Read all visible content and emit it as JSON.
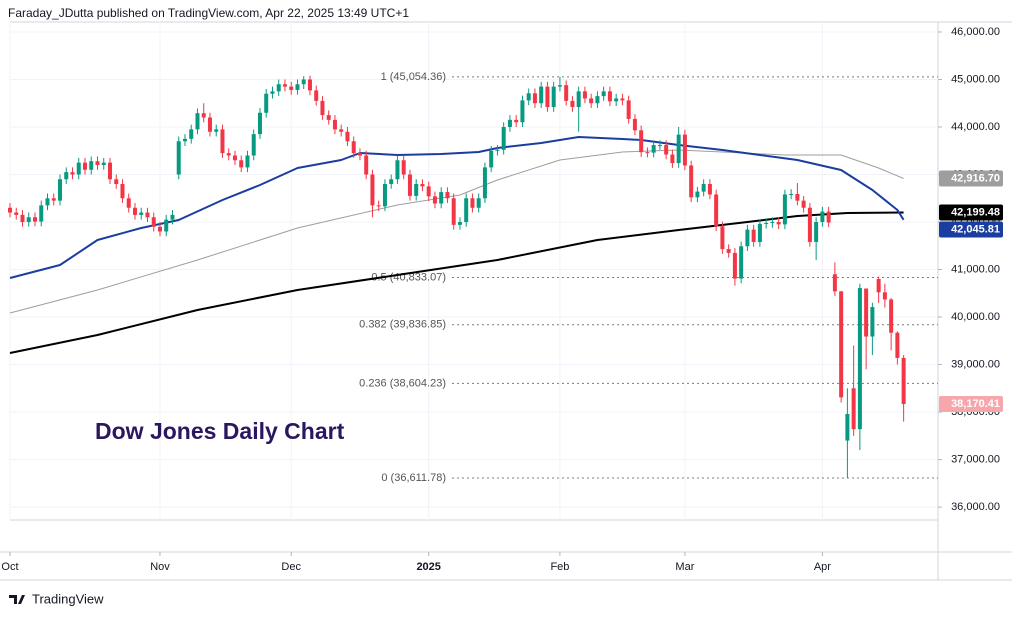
{
  "chart_data": {
    "type": "candlestick",
    "source": "Faraday_JDutta published on TradingView.com, Apr 22, 2025 13:49 UTC+1",
    "title": "Dow Jones Daily Chart",
    "brand": "TradingView",
    "categories": [
      "Oct",
      null,
      null,
      null,
      null,
      null,
      null,
      null,
      null,
      null,
      null,
      null,
      null,
      null,
      null,
      null,
      null,
      null,
      null,
      null,
      null,
      null,
      null,
      null,
      "Nov",
      null,
      null,
      null,
      null,
      null,
      null,
      null,
      null,
      null,
      null,
      null,
      null,
      null,
      null,
      null,
      null,
      null,
      null,
      null,
      null,
      "Dec",
      null,
      null,
      null,
      null,
      null,
      null,
      null,
      null,
      null,
      null,
      null,
      null,
      null,
      null,
      null,
      null,
      null,
      null,
      null,
      null,
      null,
      "2025",
      null,
      null,
      null,
      null,
      null,
      null,
      null,
      null,
      null,
      null,
      null,
      null,
      null,
      null,
      null,
      null,
      null,
      null,
      null,
      null,
      "Feb",
      null,
      null,
      null,
      null,
      null,
      null,
      null,
      null,
      null,
      null,
      null,
      null,
      null,
      null,
      null,
      null,
      null,
      null,
      null,
      "Mar",
      null,
      null,
      null,
      null,
      null,
      null,
      null,
      null,
      null,
      null,
      null,
      null,
      null,
      null,
      null,
      null,
      null,
      null,
      null,
      null,
      null,
      "Apr",
      null,
      null,
      null,
      null,
      null,
      null,
      null,
      null,
      null,
      null,
      null,
      null,
      null
    ],
    "open": [
      42300,
      42200,
      42150,
      42000,
      42100,
      42010,
      42350,
      42500,
      42450,
      42900,
      43050,
      43000,
      43250,
      43100,
      43280,
      43200,
      43250,
      42900,
      42800,
      42500,
      42300,
      42150,
      42200,
      42100,
      41900,
      41800,
      42050,
      43000,
      43700,
      43750,
      43950,
      44290,
      44200,
      43900,
      43950,
      43450,
      43400,
      43300,
      43150,
      43400,
      43850,
      44300,
      44700,
      44750,
      44900,
      44850,
      44780,
      44900,
      45000,
      44770,
      44550,
      44250,
      44150,
      43950,
      43900,
      43700,
      43450,
      43400,
      43000,
      42350,
      42330,
      42800,
      42900,
      43300,
      43000,
      42550,
      42800,
      42750,
      42540,
      42390,
      42630,
      42500,
      41940,
      42000,
      42500,
      42300,
      42500,
      43150,
      43500,
      43520,
      44000,
      44150,
      44100,
      44560,
      44710,
      44500,
      44850,
      44420,
      44850,
      44880,
      44550,
      44420,
      44750,
      44600,
      44500,
      44650,
      44750,
      44540,
      44600,
      44560,
      44170,
      43930,
      43470,
      43460,
      43620,
      43620,
      43420,
      43240,
      43840,
      43190,
      42520,
      42640,
      42800,
      42580,
      41910,
      41430,
      41350,
      40810,
      41490,
      41840,
      41580,
      41960,
      41980,
      42000,
      41950,
      42580,
      42590,
      42450,
      42300,
      41580,
      42000,
      42220,
      40900,
      40540,
      37400,
      38500,
      37640,
      40600,
      39590,
      40800,
      40520,
      40370,
      39670,
      39140
    ],
    "high": [
      42400,
      42300,
      42250,
      42200,
      42200,
      42450,
      42600,
      42600,
      43000,
      43150,
      43150,
      43350,
      43350,
      43380,
      43380,
      43350,
      43350,
      43000,
      42900,
      42600,
      42400,
      42300,
      42300,
      42200,
      42000,
      42150,
      42250,
      43800,
      43850,
      44050,
      44390,
      44500,
      44300,
      44050,
      44050,
      43550,
      43500,
      43400,
      43500,
      43950,
      44400,
      44800,
      44850,
      45000,
      45000,
      44950,
      45000,
      45070,
      45080,
      44870,
      44650,
      44350,
      44250,
      44050,
      44000,
      43800,
      43550,
      43500,
      43100,
      42450,
      42900,
      43000,
      43400,
      43400,
      43100,
      42900,
      42900,
      42850,
      42640,
      42730,
      42730,
      42600,
      42100,
      42600,
      42600,
      42600,
      43250,
      43600,
      43620,
      44100,
      44250,
      44250,
      44660,
      44810,
      44810,
      44950,
      44950,
      44950,
      45054.36,
      44980,
      44650,
      44850,
      44850,
      44700,
      44750,
      44850,
      44850,
      44700,
      44700,
      44660,
      44270,
      44030,
      43570,
      43720,
      43720,
      43720,
      43520,
      44000,
      43940,
      43290,
      42740,
      42900,
      42900,
      42680,
      42010,
      41530,
      41450,
      41590,
      41940,
      41940,
      42060,
      42080,
      42100,
      42100,
      42680,
      42690,
      42820,
      42550,
      42400,
      42100,
      42320,
      42320,
      41150,
      40550,
      38500,
      39400,
      40700,
      40600,
      40300,
      40850,
      40700,
      40400,
      39700,
      39200
    ],
    "low": [
      42100,
      42050,
      41900,
      41900,
      41910,
      41910,
      42250,
      42350,
      42350,
      42800,
      42900,
      42900,
      43000,
      43000,
      43100,
      43100,
      42800,
      42700,
      42400,
      42200,
      42050,
      42050,
      42000,
      41800,
      41700,
      41700,
      41950,
      42900,
      43600,
      43650,
      43850,
      44100,
      43800,
      43800,
      43350,
      43300,
      43200,
      43050,
      43050,
      43300,
      43750,
      44200,
      44600,
      44650,
      44750,
      44680,
      44680,
      44800,
      44670,
      44450,
      44150,
      44050,
      43850,
      43800,
      43600,
      43350,
      43300,
      42900,
      42100,
      42230,
      42230,
      42700,
      42800,
      42900,
      42450,
      42450,
      42650,
      42440,
      42290,
      42290,
      42400,
      41840,
      41840,
      41900,
      42200,
      42200,
      42400,
      43050,
      43400,
      43420,
      43900,
      44000,
      44000,
      44460,
      44400,
      44400,
      44320,
      44320,
      44750,
      44450,
      44320,
      43900,
      44500,
      44400,
      44400,
      44550,
      44440,
      44440,
      44460,
      44070,
      43830,
      43370,
      43360,
      43360,
      43520,
      43320,
      43140,
      43140,
      43090,
      42420,
      42420,
      42540,
      42480,
      41810,
      41330,
      41250,
      40660,
      40710,
      41390,
      41480,
      41480,
      41860,
      41880,
      41850,
      41850,
      42480,
      42350,
      42200,
      41480,
      41200,
      41900,
      41890,
      40440,
      38200,
      36611.78,
      37500,
      37200,
      38900,
      39200,
      40300,
      40200,
      39300,
      39000,
      37800
    ],
    "close": [
      42200,
      42150,
      42000,
      42100,
      42010,
      42350,
      42500,
      42450,
      42900,
      43050,
      43000,
      43250,
      43100,
      43280,
      43200,
      43250,
      42900,
      42800,
      42500,
      42300,
      42150,
      42200,
      42100,
      41900,
      41800,
      42050,
      42150,
      43700,
      43750,
      43950,
      44290,
      44200,
      43900,
      43950,
      43450,
      43400,
      43300,
      43150,
      43400,
      43850,
      44300,
      44700,
      44750,
      44900,
      44850,
      44780,
      44900,
      45000,
      44770,
      44550,
      44250,
      44150,
      43950,
      43900,
      43700,
      43450,
      43400,
      43000,
      42350,
      42330,
      42800,
      42900,
      43300,
      43000,
      42550,
      42800,
      42750,
      42540,
      42390,
      42630,
      42500,
      41940,
      42000,
      42500,
      42300,
      42500,
      43150,
      43500,
      43520,
      44000,
      44150,
      44100,
      44560,
      44710,
      44500,
      44850,
      44420,
      44850,
      44880,
      44550,
      44420,
      44750,
      44600,
      44500,
      44650,
      44750,
      44540,
      44600,
      44560,
      44170,
      43930,
      43470,
      43460,
      43620,
      43620,
      43420,
      43240,
      43840,
      43190,
      42520,
      42640,
      42800,
      42580,
      41910,
      41430,
      41350,
      40810,
      41490,
      41840,
      41580,
      41960,
      41980,
      42000,
      41950,
      42580,
      42590,
      42450,
      42300,
      41580,
      42000,
      42220,
      41990,
      40540,
      38310,
      37960,
      37640,
      40610,
      39590,
      40210,
      40520,
      40370,
      39670,
      39140,
      38170.41
    ],
    "last_label": "38,170.41",
    "up_color": "#089981",
    "down_color": "#f23645",
    "last_label_color": "#f7a6ac",
    "series": [
      {
        "color": "#9e9e9e",
        "last_label": "42,916.70",
        "x": [
          0,
          14,
          30,
          46,
          62,
          72,
          78,
          88,
          98,
          107,
          114,
          124,
          133,
          139,
          143
        ],
        "values": [
          40085,
          40569,
          41200,
          41874,
          42358,
          42569,
          42884,
          43305,
          43474,
          43516,
          43474,
          43411,
          43411,
          43137,
          42916.7
        ]
      },
      {
        "color": "#000000",
        "last_label": "42,199.48",
        "x": [
          0,
          14,
          30,
          46,
          62,
          78,
          94,
          107,
          118,
          126,
          134,
          143
        ],
        "values": [
          39243,
          39622,
          40148,
          40569,
          40885,
          41200,
          41622,
          41832,
          42000,
          42127,
          42190,
          42199.48
        ]
      },
      {
        "color": "#1a3ea0",
        "last_label": "42,045.81",
        "x": [
          0,
          8,
          14,
          21,
          27,
          34,
          40,
          46,
          53,
          56,
          62,
          69,
          75,
          78,
          85,
          91,
          98,
          101,
          107,
          114,
          120,
          126,
          133,
          138,
          142,
          143
        ],
        "values": [
          40822,
          41095,
          41622,
          41874,
          42043,
          42464,
          42779,
          43137,
          43305,
          43453,
          43411,
          43432,
          43474,
          43558,
          43663,
          43790,
          43748,
          43726,
          43621,
          43516,
          43411,
          43305,
          43095,
          42674,
          42253,
          42045.81
        ]
      }
    ],
    "fib_levels": [
      {
        "value": 45054.36,
        "label": "1 (45,054.36)"
      },
      {
        "value": 40833.07,
        "label": "0.5 (40,833.07)"
      },
      {
        "value": 39836.85,
        "label": "0.382 (39,836.85)"
      },
      {
        "value": 38604.23,
        "label": "0.236 (38,604.23)"
      },
      {
        "value": 36611.78,
        "label": "0 (36,611.78)"
      }
    ],
    "xlim": [
      -1.6,
      148.5
    ],
    "ylim": [
      35728,
      46210
    ],
    "yticks": [
      {
        "value": 36000,
        "label": "36,000.00"
      },
      {
        "value": 37000,
        "label": "37,000.00"
      },
      {
        "value": 38000,
        "label": "38,000.00"
      },
      {
        "value": 39000,
        "label": "39,000.00"
      },
      {
        "value": 40000,
        "label": "40,000.00"
      },
      {
        "value": 41000,
        "label": "41,000.00"
      },
      {
        "value": 42000,
        "label": "42,000.00"
      },
      {
        "value": 43000,
        "label": "43,000.00"
      },
      {
        "value": 44000,
        "label": "44,000.00"
      },
      {
        "value": 45000,
        "label": "45,000.00"
      },
      {
        "value": 46000,
        "label": "46,000.00"
      }
    ],
    "grid": true
  }
}
